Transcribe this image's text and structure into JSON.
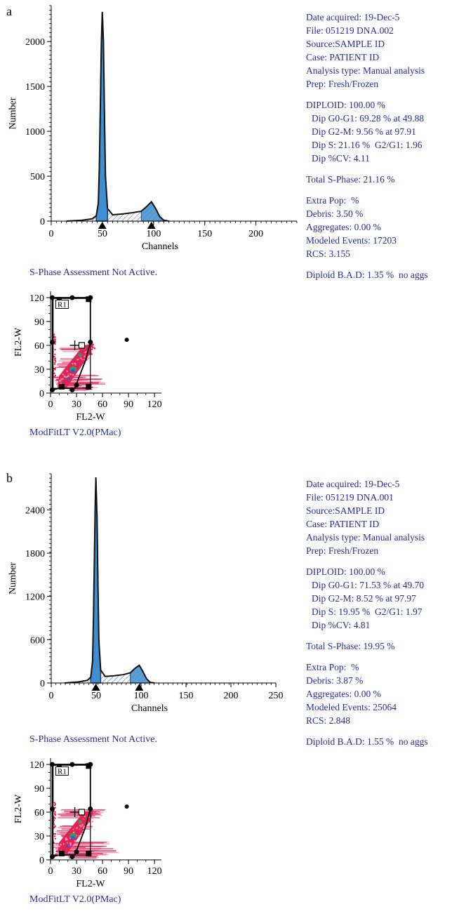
{
  "panels": [
    {
      "letter": "a",
      "chart_data": {
        "type": "area",
        "title": "",
        "xlabel": "Channels",
        "ylabel": "Number",
        "xlim": [
          0,
          240
        ],
        "ylim": [
          0,
          2400
        ],
        "xticks": [
          0,
          50,
          100,
          150,
          200
        ],
        "yticks": [
          0,
          500,
          1000,
          1500,
          2000
        ],
        "peak_markers": [
          49.88,
          97.91
        ],
        "series": [
          {
            "x": [
              15,
              30,
              40,
              44,
              46,
              47,
              48,
              49,
              49.9,
              51,
              52,
              53,
              55,
              60,
              70,
              80,
              88,
              93,
              97.9,
              102,
              106,
              110,
              115
            ],
            "y": [
              0,
              10,
              25,
              60,
              200,
              600,
              1300,
              2000,
              2330,
              2000,
              1200,
              500,
              140,
              70,
              80,
              95,
              110,
              160,
              215,
              140,
              50,
              10,
              0
            ]
          }
        ]
      },
      "info": {
        "date": "Date acquired: 19-Dec-5",
        "file": "File: 051219 DNA.002",
        "source": "Source:SAMPLE ID",
        "case": "Case: PATIENT ID",
        "analysis": "Analysis type: Manual analysis",
        "prep": "Prep: Fresh/Frozen",
        "diploid": "DIPLOID: 100.00 %",
        "g0g1": "Dip G0-G1: 69.28 % at 49.88",
        "g2m": "Dip G2-M: 9.56 % at 97.91",
        "s": "Dip S: 21.16 %  G2/G1: 1.96",
        "cv": "Dip %CV: 4.11",
        "total_s": "Total S-Phase: 21.16 %",
        "extra": "Extra Pop:  %",
        "debris": "Debris: 3.50 %",
        "aggregates": "Aggregates: 0.00 %",
        "events": "Modeled Events: 17203",
        "rcs": "RCS: 3.155",
        "bad": "Diploid B.A.D: 1.35 %  no aggs"
      },
      "sphase_note": "S-Phase Assessment Not Active.",
      "scatter": {
        "xlabel": "FL2-W",
        "ylabel": "FL2-W",
        "xticks": [
          0,
          30,
          60,
          90,
          120
        ],
        "yticks": [
          0,
          30,
          60,
          90,
          120
        ],
        "region_label": "R1",
        "range": [
          0,
          128
        ]
      },
      "software": "ModFitLT   V2.0(PMac)"
    },
    {
      "letter": "b",
      "chart_data": {
        "type": "area",
        "title": "",
        "xlabel": "Channels",
        "ylabel": "Number",
        "xlim": [
          0,
          250
        ],
        "ylim": [
          0,
          2900
        ],
        "xticks": [
          0,
          50,
          100,
          150,
          200,
          250
        ],
        "yticks": [
          0,
          600,
          1200,
          1800,
          2400
        ],
        "peak_markers": [
          49.7,
          97.97
        ],
        "series": [
          {
            "x": [
              15,
              30,
              40,
              44,
              46,
              47,
              48,
              49,
              49.7,
              51,
              52,
              53,
              55,
              60,
              70,
              80,
              88,
              93,
              98,
              102,
              106,
              110,
              115
            ],
            "y": [
              0,
              15,
              35,
              80,
              300,
              900,
              1700,
              2500,
              2850,
              2300,
              1400,
              600,
              180,
              90,
              100,
              115,
              140,
              200,
              245,
              160,
              60,
              10,
              0
            ]
          }
        ]
      },
      "info": {
        "date": "Date acquired: 19-Dec-5",
        "file": "File: 051219 DNA.001",
        "source": "Source:SAMPLE ID",
        "case": "Case: PATIENT ID",
        "analysis": "Analysis type: Manual analysis",
        "prep": "Prep: Fresh/Frozen",
        "diploid": "DIPLOID: 100.00 %",
        "g0g1": "Dip G0-G1: 71.53 % at 49.70",
        "g2m": "Dip G2-M: 8.52 % at 97.97",
        "s": "Dip S: 19.95 %  G2/G1: 1.97",
        "cv": "Dip %CV: 4.81",
        "total_s": "Total S-Phase: 19.95 %",
        "extra": "Extra Pop:  %",
        "debris": "Debris: 3.87 %",
        "aggregates": "Aggregates: 0.00 %",
        "events": "Modeled Events: 25064",
        "rcs": "RCS: 2.848",
        "bad": "Diploid B.A.D: 1.55 %  no aggs"
      },
      "sphase_note": "S-Phase Assessment Not Active.",
      "scatter": {
        "xlabel": "FL2-W",
        "ylabel": "FL2-W",
        "xticks": [
          0,
          30,
          60,
          90,
          120
        ],
        "yticks": [
          0,
          30,
          60,
          90,
          120
        ],
        "region_label": "R1",
        "range": [
          0,
          128
        ]
      },
      "software": "ModFitLT   V2.0(PMac)"
    }
  ],
  "colors": {
    "text_blue": "#2b2ba0",
    "peak_fill": "#3f8fd0",
    "peak_dark": "#1e3f73",
    "hatch": "#5a7fb0",
    "scatter_red": "#e02455",
    "scatter_pink": "#f28ab0",
    "scatter_green": "#30a060",
    "scatter_blue": "#3060d0"
  }
}
